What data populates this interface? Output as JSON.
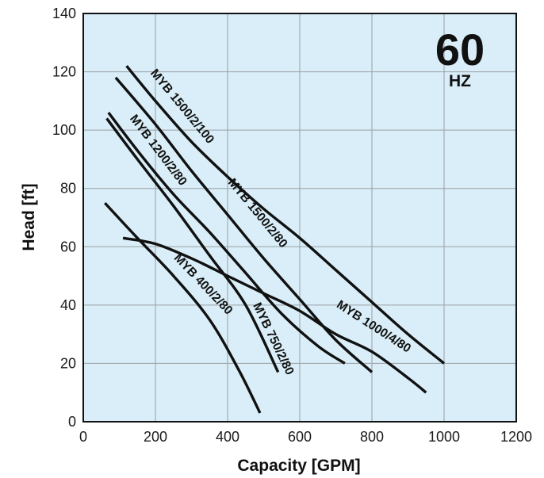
{
  "chart_data": {
    "type": "line",
    "xlabel": "Capacity [GPM]",
    "ylabel": "Head [ft]",
    "xlim": [
      0,
      1200
    ],
    "ylim": [
      0,
      140
    ],
    "x_ticks": [
      0,
      200,
      400,
      600,
      800,
      1000,
      1200
    ],
    "y_ticks": [
      0,
      20,
      40,
      60,
      80,
      100,
      120,
      140
    ],
    "grid": true,
    "background_color": "#d9eef8",
    "line_color": "#111111",
    "frequency": {
      "value": "60",
      "unit": "HZ"
    },
    "series": [
      {
        "name": "MYB 1500/2/100",
        "points": [
          [
            120,
            122
          ],
          [
            200,
            110
          ],
          [
            300,
            96
          ],
          [
            400,
            84
          ],
          [
            500,
            73
          ],
          [
            600,
            63
          ],
          [
            700,
            52
          ],
          [
            800,
            41
          ],
          [
            900,
            30
          ],
          [
            1000,
            20
          ]
        ]
      },
      {
        "name": "MYB 1500/2/80",
        "points": [
          [
            90,
            118
          ],
          [
            200,
            102
          ],
          [
            300,
            86
          ],
          [
            400,
            71
          ],
          [
            500,
            56
          ],
          [
            600,
            42
          ],
          [
            700,
            28
          ],
          [
            800,
            17
          ]
        ]
      },
      {
        "name": "MYB 1200/2/80",
        "points": [
          [
            70,
            106
          ],
          [
            150,
            93
          ],
          [
            250,
            78
          ],
          [
            350,
            65
          ],
          [
            450,
            51
          ],
          [
            550,
            37
          ],
          [
            650,
            26
          ],
          [
            725,
            20
          ]
        ]
      },
      {
        "name": "MYB 750/2/80",
        "points": [
          [
            65,
            104
          ],
          [
            150,
            90
          ],
          [
            250,
            74
          ],
          [
            350,
            57
          ],
          [
            450,
            40
          ],
          [
            540,
            17
          ]
        ]
      },
      {
        "name": "MYB 1000/4/80",
        "points": [
          [
            110,
            63
          ],
          [
            200,
            61
          ],
          [
            300,
            56
          ],
          [
            400,
            50
          ],
          [
            500,
            44
          ],
          [
            600,
            38
          ],
          [
            700,
            30
          ],
          [
            800,
            24
          ],
          [
            900,
            15
          ],
          [
            950,
            10
          ]
        ]
      },
      {
        "name": "MYB 400/2/80",
        "points": [
          [
            60,
            75
          ],
          [
            150,
            63
          ],
          [
            250,
            50
          ],
          [
            350,
            35
          ],
          [
            430,
            18
          ],
          [
            490,
            3
          ]
        ]
      }
    ],
    "labels": [
      {
        "series": "MYB 1500/2/100",
        "text": "MYB 1500/2/100",
        "x": 185,
        "y": 119.5
      },
      {
        "series": "MYB 1500/2/80",
        "text": "MYB 1500/2/80",
        "x": 400,
        "y": 82
      },
      {
        "series": "MYB 1200/2/80",
        "text": "MYB 1200/2/80",
        "x": 128,
        "y": 104
      },
      {
        "series": "MYB 750/2/80",
        "text": "MYB 750/2/80",
        "x": 470,
        "y": 40
      },
      {
        "series": "MYB 1000/4/80",
        "text": "MYB 1000/4/80",
        "x": 700,
        "y": 39.5
      },
      {
        "series": "MYB 400/2/80",
        "text": "MYB 400/2/80",
        "x": 250,
        "y": 56
      }
    ]
  }
}
